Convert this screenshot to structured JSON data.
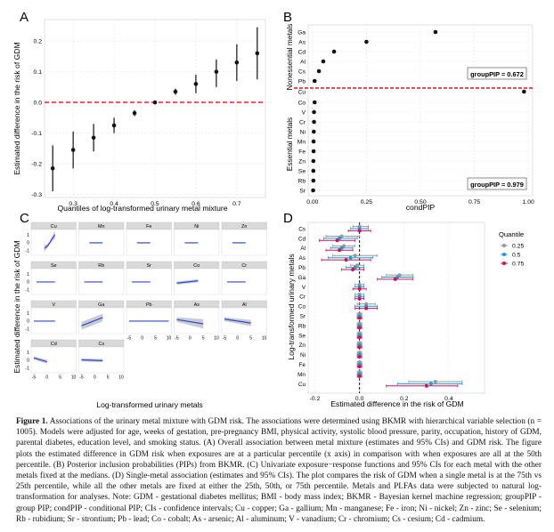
{
  "panels": {
    "A": {
      "letter": "A",
      "ylabel": "Estimated difference in the risk of GDM",
      "xlabel": "Quantiles of log-transformed urinary metal mixture",
      "x_ticks": [
        "0.3",
        "0.4",
        "0.5",
        "0.6",
        "0.7"
      ],
      "y_ticks": [
        "0.2",
        "0.1",
        "0.0",
        "-0.1",
        "-0.2",
        "-0.3"
      ]
    },
    "B": {
      "letter": "B",
      "xlabel": "condPIP",
      "x_ticks": [
        "0.00",
        "0.25",
        "0.50",
        "0.75",
        "1.00"
      ],
      "group_labels": [
        "Nonessential metals",
        "Essential metals"
      ],
      "group_pip_labels": [
        "groupPIP = 0.672",
        "groupPIP = 0.979"
      ],
      "metals": [
        "Ga",
        "As",
        "Cd",
        "Al",
        "Cs",
        "Pb",
        "Cu",
        "Co",
        "V",
        "Cr",
        "Ni",
        "Mn",
        "Fe",
        "Zn",
        "Se",
        "Rb",
        "Sr"
      ]
    },
    "C": {
      "letter": "C",
      "ylabel": "Estimated difference in the risk of GDM",
      "xlabel": "Log-transformed urinary metals",
      "strips": [
        "Cu",
        "Mn",
        "Fe",
        "Ni",
        "Zn",
        "Se",
        "Rb",
        "Sr",
        "Co",
        "Cr",
        "V",
        "Ga",
        "Pb",
        "As",
        "Al",
        "Cd",
        "Cs"
      ],
      "x_ticks": [
        "-5",
        "0",
        "5",
        "10"
      ],
      "y_ticks": [
        "1",
        "0",
        "-1"
      ]
    },
    "D": {
      "letter": "D",
      "ylabel": "Log-transformed urinary metals",
      "xlabel": "Estimated difference in the risk of GDM",
      "x_ticks": [
        "-0.2",
        "0.0",
        "0.2",
        "0.4"
      ],
      "metals": [
        "Cs",
        "Cd",
        "Al",
        "As",
        "Pb",
        "Ga",
        "V",
        "Cr",
        "Co",
        "Sr",
        "Rb",
        "Se",
        "Zn",
        "Ni",
        "Fe",
        "Mn",
        "Cu"
      ],
      "legend_title": "Quantile",
      "legend_items": [
        "0.25",
        "0.5",
        "0.75"
      ],
      "colors": [
        "#999999",
        "#1f9ad6",
        "#d0115b"
      ]
    }
  },
  "chart_data": [
    {
      "type": "scatter",
      "panel": "A",
      "x": [
        0.25,
        0.3,
        0.35,
        0.4,
        0.45,
        0.5,
        0.55,
        0.6,
        0.65,
        0.7,
        0.75
      ],
      "y": [
        -0.215,
        -0.155,
        -0.115,
        -0.075,
        -0.035,
        0.0,
        0.035,
        0.06,
        0.1,
        0.13,
        0.16
      ],
      "lower": [
        -0.29,
        -0.215,
        -0.16,
        -0.1,
        -0.045,
        0.0,
        0.025,
        0.03,
        0.05,
        0.07,
        0.075
      ],
      "upper": [
        -0.14,
        -0.095,
        -0.07,
        -0.05,
        -0.025,
        0.0,
        0.045,
        0.09,
        0.14,
        0.19,
        0.245
      ],
      "xlim": [
        0.23,
        0.77
      ],
      "ylim": [
        -0.31,
        0.27
      ],
      "reference_line": 0,
      "xlabel": "Quantiles of log-transformed urinary metal mixture",
      "ylabel": "Estimated difference in the risk of GDM"
    },
    {
      "type": "scatter",
      "panel": "B",
      "categories": [
        "Ga",
        "As",
        "Cd",
        "Al",
        "Cs",
        "Pb",
        "Cu",
        "Co",
        "V",
        "Cr",
        "Ni",
        "Mn",
        "Fe",
        "Zn",
        "Se",
        "Rb",
        "Sr"
      ],
      "values": [
        0.57,
        0.25,
        0.1,
        0.05,
        0.03,
        0.01,
        0.98,
        0.01,
        0.007,
        0.007,
        0.006,
        0.005,
        0.005,
        0.004,
        0.004,
        0.004,
        0.003
      ],
      "xlim": [
        -0.02,
        1.02
      ],
      "xlabel": "condPIP",
      "groups": [
        {
          "name": "Nonessential metals",
          "metals": [
            "Ga",
            "As",
            "Cd",
            "Al",
            "Cs",
            "Pb"
          ],
          "groupPIP": 0.672
        },
        {
          "name": "Essential metals",
          "metals": [
            "Cu",
            "Co",
            "V",
            "Cr",
            "Ni",
            "Mn",
            "Fe",
            "Zn",
            "Se",
            "Rb",
            "Sr"
          ],
          "groupPIP": 0.979
        }
      ]
    },
    {
      "type": "line",
      "panel": "C",
      "xlim": [
        -6,
        11
      ],
      "ylim": [
        -1.6,
        1.7
      ],
      "xlabel": "Log-transformed urinary metals",
      "ylabel": "Estimated difference in the risk of GDM",
      "series": [
        {
          "name": "Cu",
          "x": [
            -1,
            0,
            1,
            2,
            3
          ],
          "y": [
            -0.7,
            -0.45,
            0.0,
            0.55,
            1.05
          ],
          "band": [
            0.45,
            0.25,
            0.2,
            0.3,
            0.55
          ]
        },
        {
          "name": "Mn",
          "x": [
            -2,
            3
          ],
          "y": [
            0,
            0
          ],
          "band": [
            0.05,
            0.05
          ]
        },
        {
          "name": "Fe",
          "x": [
            -2,
            3
          ],
          "y": [
            0,
            0
          ],
          "band": [
            0.05,
            0.05
          ]
        },
        {
          "name": "Ni",
          "x": [
            -2,
            3
          ],
          "y": [
            0,
            0
          ],
          "band": [
            0.05,
            0.05
          ]
        },
        {
          "name": "Zn",
          "x": [
            -2,
            3
          ],
          "y": [
            0,
            0
          ],
          "band": [
            0.05,
            0.05
          ]
        },
        {
          "name": "Se",
          "x": [
            -4,
            3
          ],
          "y": [
            0,
            0
          ],
          "band": [
            0.05,
            0.05
          ]
        },
        {
          "name": "Rb",
          "x": [
            -4,
            3
          ],
          "y": [
            0,
            0
          ],
          "band": [
            0.05,
            0.05
          ]
        },
        {
          "name": "Sr",
          "x": [
            -4,
            3
          ],
          "y": [
            0,
            0
          ],
          "band": [
            0.05,
            0.05
          ]
        },
        {
          "name": "Co",
          "x": [
            -5,
            3
          ],
          "y": [
            -0.15,
            0.15
          ],
          "band": [
            0.2,
            0.2
          ]
        },
        {
          "name": "Cr",
          "x": [
            -4,
            3
          ],
          "y": [
            0,
            0
          ],
          "band": [
            0.05,
            0.05
          ]
        },
        {
          "name": "V",
          "x": [
            -5,
            3
          ],
          "y": [
            0,
            0
          ],
          "band": [
            0.05,
            0.05
          ]
        },
        {
          "name": "Ga",
          "x": [
            -5,
            3
          ],
          "y": [
            -0.6,
            0.45
          ],
          "band": [
            0.5,
            0.5
          ]
        },
        {
          "name": "Pb",
          "x": [
            -5,
            10
          ],
          "y": [
            0,
            0
          ],
          "band": [
            0.05,
            0.05
          ]
        },
        {
          "name": "As",
          "x": [
            -5,
            5
          ],
          "y": [
            0.2,
            -0.35
          ],
          "band": [
            0.3,
            0.6
          ]
        },
        {
          "name": "Al",
          "x": [
            -5,
            5
          ],
          "y": [
            0.25,
            -0.25
          ],
          "band": [
            0.25,
            0.4
          ]
        },
        {
          "name": "Cd",
          "x": [
            -5,
            0
          ],
          "y": [
            0.3,
            -0.2
          ],
          "band": [
            0.2,
            0.25
          ]
        },
        {
          "name": "Cs",
          "x": [
            -5,
            3
          ],
          "y": [
            0.05,
            -0.05
          ],
          "band": [
            0.2,
            0.2
          ]
        }
      ]
    },
    {
      "type": "scatter",
      "panel": "D",
      "categories": [
        "Cs",
        "Cd",
        "Al",
        "As",
        "Pb",
        "Ga",
        "V",
        "Cr",
        "Co",
        "Sr",
        "Rb",
        "Se",
        "Zn",
        "Ni",
        "Fe",
        "Mn",
        "Cu"
      ],
      "xlim": [
        -0.23,
        0.56
      ],
      "xlabel": "Estimated difference in the risk of GDM",
      "ylabel": "Log-transformed urinary metals",
      "series": [
        {
          "name": "0.25",
          "values": [
            0.0,
            -0.08,
            -0.07,
            -0.02,
            -0.01,
            0.18,
            0.0,
            0.0,
            0.03,
            0.0,
            0.0,
            0.0,
            0.0,
            0.0,
            0.0,
            0.0,
            0.34
          ],
          "lower": [
            -0.03,
            -0.15,
            -0.12,
            -0.12,
            -0.04,
            0.12,
            -0.02,
            -0.02,
            -0.01,
            -0.01,
            -0.01,
            -0.01,
            -0.01,
            -0.01,
            -0.01,
            -0.01,
            0.22
          ],
          "upper": [
            0.04,
            0.0,
            -0.02,
            0.08,
            0.02,
            0.24,
            0.02,
            0.02,
            0.07,
            0.01,
            0.01,
            0.01,
            0.01,
            0.01,
            0.01,
            0.01,
            0.46
          ]
        },
        {
          "name": "0.5",
          "values": [
            0.0,
            -0.09,
            -0.08,
            -0.04,
            -0.02,
            0.17,
            0.0,
            0.0,
            0.03,
            0.0,
            0.0,
            0.0,
            0.0,
            0.0,
            0.0,
            0.0,
            0.32
          ],
          "lower": [
            -0.04,
            -0.16,
            -0.13,
            -0.14,
            -0.06,
            0.1,
            -0.02,
            -0.02,
            -0.02,
            -0.01,
            -0.01,
            -0.01,
            -0.01,
            -0.01,
            -0.01,
            -0.01,
            0.17
          ],
          "upper": [
            0.04,
            -0.01,
            -0.03,
            0.06,
            0.02,
            0.24,
            0.02,
            0.02,
            0.08,
            0.01,
            0.01,
            0.01,
            0.01,
            0.01,
            0.01,
            0.01,
            0.46
          ]
        },
        {
          "name": "0.75",
          "values": [
            0.0,
            -0.1,
            -0.09,
            -0.06,
            -0.03,
            0.16,
            0.0,
            0.0,
            0.03,
            0.0,
            0.0,
            0.0,
            0.0,
            0.0,
            0.0,
            0.0,
            0.3
          ],
          "lower": [
            -0.05,
            -0.18,
            -0.15,
            -0.17,
            -0.08,
            0.08,
            -0.03,
            -0.02,
            -0.02,
            -0.01,
            -0.01,
            -0.01,
            -0.01,
            -0.01,
            -0.01,
            -0.01,
            0.12
          ],
          "upper": [
            0.05,
            -0.02,
            -0.03,
            0.05,
            0.02,
            0.24,
            0.03,
            0.02,
            0.08,
            0.01,
            0.01,
            0.01,
            0.01,
            0.01,
            0.01,
            0.01,
            0.44
          ]
        }
      ]
    }
  ],
  "caption": {
    "label": "Figure 1.",
    "text": " Associations of the urinary metal mixture with GDM risk. The associations were determined using BKMR with hierarchical variable selection (n = 1005). Models were adjusted for age, weeks of gestation, pre-pregnancy BMI, physical activity, systolic blood pressure, parity, occupation, history of GDM, parental diabetes, education level, and smoking status. (A) Overall association between metal mixture (estimates and 95% CIs) and GDM risk. The figure plots the estimated difference in GDM risk when exposures are at a particular percentile (x axis) in comparison with when exposures are all at the 50th percentile. (B) Posterior inclusion probabilities (PIPs) from BKMR. (C) Univariate exposure−response functions and 95% CIs for each metal with the other metals fixed at the medians. (D) Single-metal association (estimates and 95% CIs). The plot compares the risk of GDM when a single metal is at the 75th vs 25th percentile, while all the other metals are fixed at either the 25th, 50th, or 75th percentile. Metals and PLFAs data were subjected to natural log-transformation for analyses. Note: GDM - gestational diabetes mellitus; BMI - body mass index; BKMR - Bayesian kernel machine regression; groupPIP - group PIP; condPIP - conditional PIP; CIs - confidence intervals; Cu - copper; Ga - gallium; Mn - manganese; Fe - iron; Ni - nickel; Zn - zinc; Se - selenium; Rb - rubidium; Sr - strontium; Pb - lead; Co - cobalt; As - arsenic; Al - aluminum; V - vanadium; Cr - chromium; Cs - cesium; Cd - cadmium."
  }
}
